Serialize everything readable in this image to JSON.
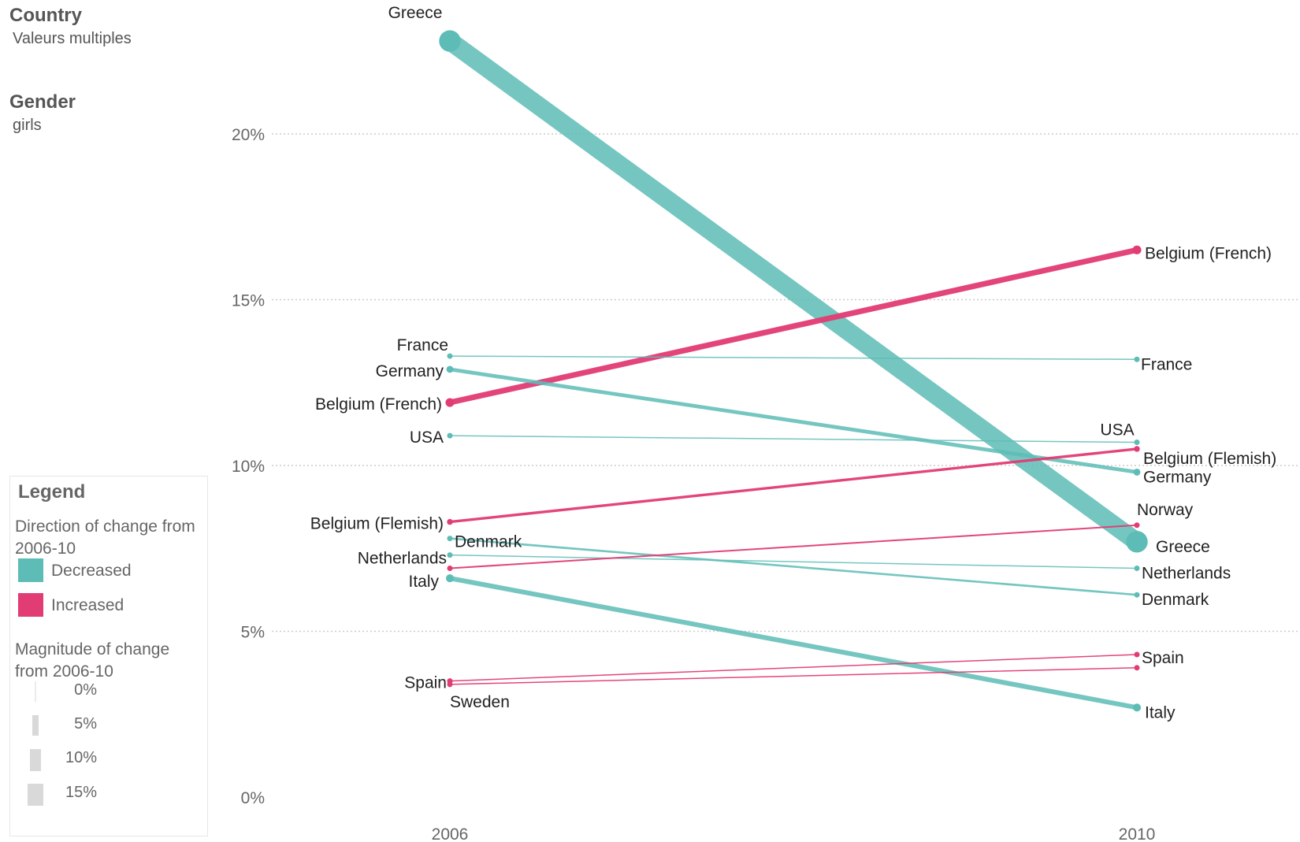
{
  "filters": {
    "country_title": "Country",
    "country_value": "Valeurs multiples",
    "gender_title": "Gender",
    "gender_value": "girls"
  },
  "legend": {
    "title": "Legend",
    "direction_title": "Direction of change from 2006-10",
    "decreased_label": "Decreased",
    "increased_label": "Increased",
    "magnitude_title": "Magnitude of change from 2006-10",
    "magnitude_items": [
      "0%",
      "5%",
      "10%",
      "15%"
    ]
  },
  "colors": {
    "decreased": "#5dbdb6",
    "increased": "#e23c74",
    "grid": "#cccccc",
    "text": "#222222",
    "axis_text": "#666666"
  },
  "chart_data": {
    "type": "line",
    "x": [
      "2006",
      "2010"
    ],
    "ylim": [
      0,
      25
    ],
    "yticks": [
      0,
      5,
      10,
      15,
      20
    ],
    "ytick_labels": [
      "0%",
      "5%",
      "10%",
      "15%",
      "20%"
    ],
    "xtick_labels": [
      "2006",
      "2010"
    ],
    "series": [
      {
        "name": "Greece",
        "values": [
          22.8,
          7.7
        ],
        "direction": "decreased"
      },
      {
        "name": "Belgium (French)",
        "values": [
          11.9,
          16.5
        ],
        "direction": "increased"
      },
      {
        "name": "France",
        "values": [
          13.3,
          13.2
        ],
        "direction": "decreased"
      },
      {
        "name": "Germany",
        "values": [
          12.9,
          9.8
        ],
        "direction": "decreased"
      },
      {
        "name": "USA",
        "values": [
          10.9,
          10.7
        ],
        "direction": "decreased"
      },
      {
        "name": "Belgium (Flemish)",
        "values": [
          8.3,
          10.5
        ],
        "direction": "increased"
      },
      {
        "name": "Denmark",
        "values": [
          7.8,
          6.1
        ],
        "direction": "decreased"
      },
      {
        "name": "Netherlands",
        "values": [
          7.3,
          6.9
        ],
        "direction": "decreased"
      },
      {
        "name": "Italy",
        "values": [
          6.6,
          2.7
        ],
        "direction": "decreased"
      },
      {
        "name": "Norway",
        "values": [
          6.9,
          8.2
        ],
        "direction": "increased"
      },
      {
        "name": "Spain",
        "values": [
          3.5,
          4.3
        ],
        "direction": "increased"
      },
      {
        "name": "Sweden",
        "values": [
          3.4,
          3.9
        ],
        "direction": "increased"
      }
    ],
    "labels_2006": [
      "Greece",
      "France",
      "Germany",
      "Belgium (French)",
      "USA",
      "Belgium (Flemish)",
      "Denmark",
      "Netherlands",
      "Italy",
      "Spain",
      "Sweden"
    ],
    "labels_2010": [
      "Belgium (French)",
      "France",
      "USA",
      "Belgium (Flemish)",
      "Germany",
      "Norway",
      "Greece",
      "Netherlands",
      "Denmark",
      "Spain",
      "Italy"
    ],
    "grid": true,
    "legend_placement": "left"
  }
}
